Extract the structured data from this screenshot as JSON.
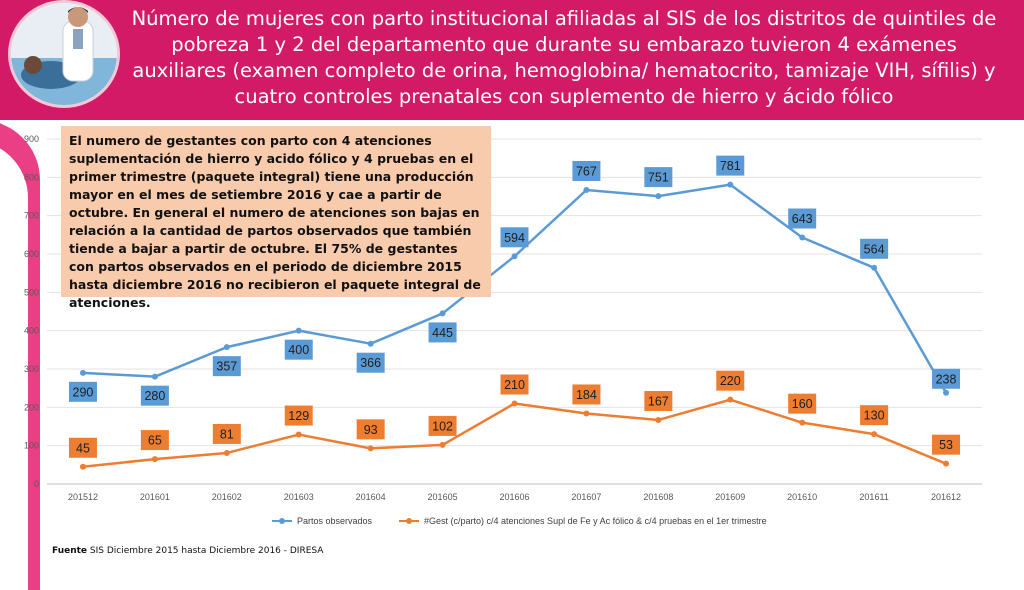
{
  "header": {
    "title": "Número de mujeres con parto institucional afiliadas al SIS de los distritos de quintiles de pobreza 1 y 2 del departamento que durante su embarazo tuvieron 4 exámenes auxiliares (examen completo de orina, hemoglobina/ hematocrito, tamizaje VIH, sífilis) y cuatro controles prenatales con suplemento de hierro y ácido fólico"
  },
  "annotation": "El numero de gestantes con parto con 4 atenciones suplementación de hierro y acido fólico y 4 pruebas en el primer trimestre (paquete integral) tiene una producción mayor en el mes de setiembre 2016 y cae a partir de octubre. En general el numero de atenciones son bajas en relación a la cantidad de partos observados que también tiende a bajar a partir de octubre. El 75% de gestantes con partos observados en el periodo de diciembre 2015 hasta diciembre 2016 no recibieron el paquete integral de atenciones.",
  "footer": {
    "source_label": "Fuente",
    "source_text": " SIS Diciembre 2015 hasta Diciembre  2016 - DIRESA"
  },
  "colors": {
    "header": "#d21a66",
    "series_blue": "#5b9bd5",
    "series_orange": "#ed7d31",
    "label_blue_bg": "#5b9bd5",
    "label_orange_bg": "#ed7d31"
  },
  "chart_data": {
    "type": "line",
    "title": "",
    "xlabel": "",
    "ylabel": "",
    "ylim": [
      0,
      900
    ],
    "yticks": [
      0,
      100,
      200,
      300,
      400,
      500,
      600,
      700,
      800,
      900
    ],
    "categories": [
      "201512",
      "201601",
      "201602",
      "201603",
      "201604",
      "201605",
      "201606",
      "201607",
      "201608",
      "201609",
      "201610",
      "201611",
      "201612"
    ],
    "series": [
      {
        "name": "Partos observados",
        "values": [
          290,
          280,
          357,
          400,
          366,
          445,
          594,
          767,
          751,
          781,
          643,
          564,
          238
        ]
      },
      {
        "name": "#Gest (c/parto) c/4 atenciones Supl de Fe y Ac fólico & c/4 pruebas en el 1er trimestre",
        "values": [
          45,
          65,
          81,
          129,
          93,
          102,
          210,
          184,
          167,
          220,
          160,
          130,
          53
        ]
      }
    ],
    "grid": true,
    "legend": "bottom"
  }
}
